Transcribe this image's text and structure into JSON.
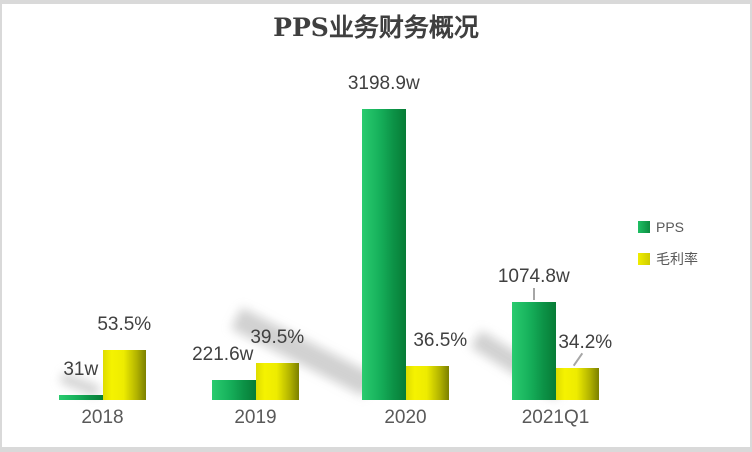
{
  "chart_data": {
    "type": "bar",
    "title": "PPS业务财务概况",
    "categories": [
      "2018",
      "2019",
      "2020",
      "2021Q1"
    ],
    "series": [
      {
        "name": "PPS",
        "unit": "w",
        "values": [
          31,
          221.6,
          3198.9,
          1074.8
        ],
        "labels": [
          "31w",
          "221.6w",
          "3198.9w",
          "1074.8w"
        ],
        "color": "#12a855"
      },
      {
        "name": "毛利率",
        "unit": "%",
        "values": [
          53.5,
          39.5,
          36.5,
          34.2
        ],
        "labels": [
          "53.5%",
          "39.5%",
          "36.5%",
          "34.2%"
        ],
        "color": "#e8e400"
      }
    ],
    "legend_position": "right",
    "grid": false,
    "value_axis_visible": false
  },
  "colors": {
    "green_bar_light": "#2acb6f",
    "green_bar_dark": "#077b36",
    "yellow_bar_light": "#f5f200",
    "yellow_bar_dark": "#7c8000",
    "title_text": "#3f3f3f",
    "data_label_text": "#404040",
    "category_text": "#595959",
    "legend_text": "#595959",
    "card_border": "#d9d9d9",
    "leader_line": "#a6a6a6"
  }
}
